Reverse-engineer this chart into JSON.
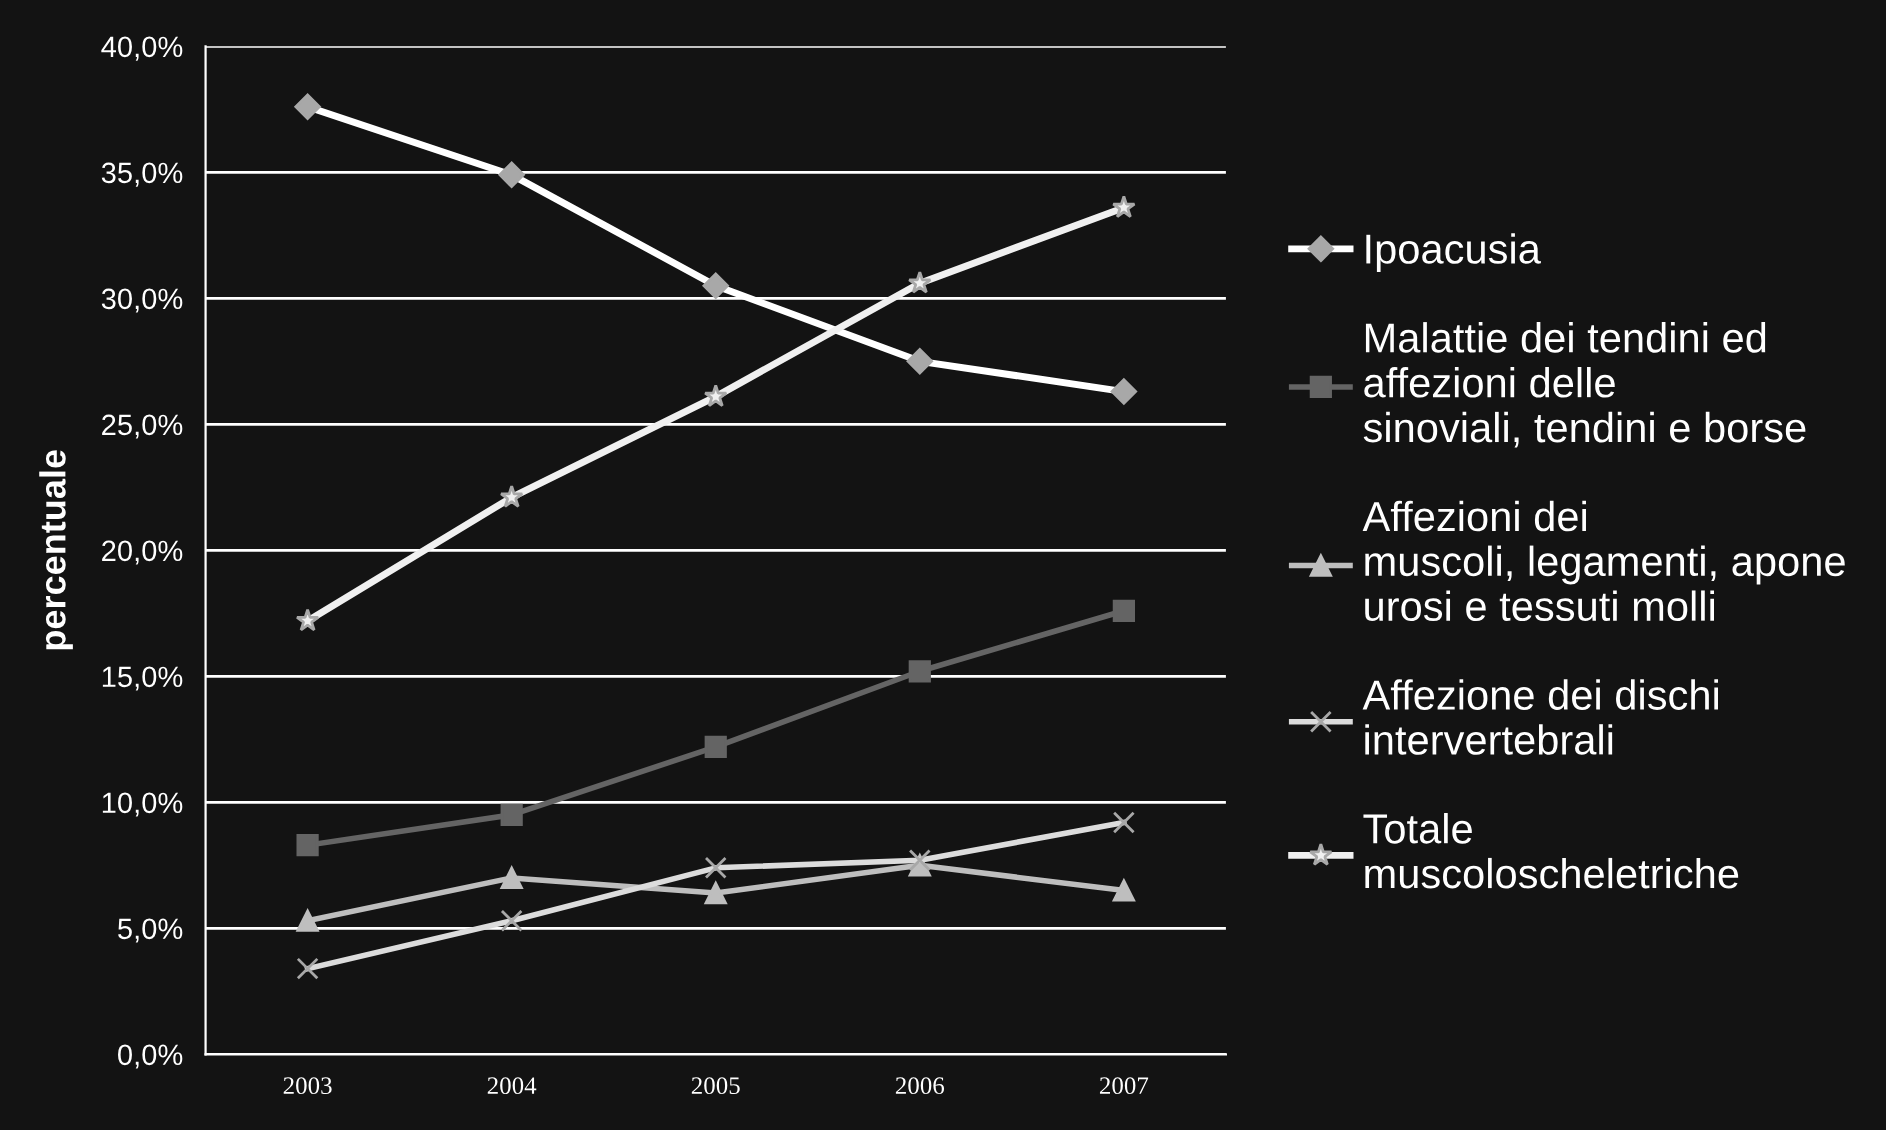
{
  "chart_data": {
    "type": "line",
    "ylabel": "percentuale",
    "categories": [
      "2003",
      "2004",
      "2005",
      "2006",
      "2007"
    ],
    "series": [
      {
        "name": "Ipoacusia",
        "color": "#ffffff",
        "marker": "diamond",
        "values": [
          37.6,
          34.9,
          30.5,
          27.5,
          26.3
        ]
      },
      {
        "name": "Malattie dei tendini ed\naffezioni delle\nsinoviali, tendini e borse",
        "color": "#646464",
        "marker": "square",
        "values": [
          8.3,
          9.5,
          12.2,
          15.2,
          17.6
        ]
      },
      {
        "name": "Affezioni dei\nmuscoli, legamenti, apone\nurosi e tessuti molli",
        "color": "#bebebe",
        "marker": "triangle",
        "values": [
          5.3,
          7.0,
          6.4,
          7.5,
          6.5
        ]
      },
      {
        "name": "Affezione dei dischi\nintervertebrali",
        "color": "#dcdcdc",
        "marker": "cross",
        "values": [
          3.4,
          5.3,
          7.4,
          7.7,
          9.2
        ]
      },
      {
        "name": "Totale\nmuscoloscheletriche",
        "color": "#f0f0f0",
        "marker": "star",
        "values": [
          17.2,
          22.1,
          26.1,
          30.6,
          33.6
        ]
      }
    ],
    "ylim": [
      0,
      40
    ],
    "yticks": [
      {
        "value": 0,
        "label": "0,0%"
      },
      {
        "value": 5,
        "label": "5,0%"
      },
      {
        "value": 10,
        "label": "10,0%"
      },
      {
        "value": 15,
        "label": "15,0%"
      },
      {
        "value": 20,
        "label": "20,0%"
      },
      {
        "value": 25,
        "label": "25,0%"
      },
      {
        "value": 30,
        "label": "30,0%"
      },
      {
        "value": 35,
        "label": "35,0%"
      },
      {
        "value": 40,
        "label": "40,0%"
      }
    ],
    "grid": "y",
    "legend": "right",
    "line_style": "solid"
  }
}
